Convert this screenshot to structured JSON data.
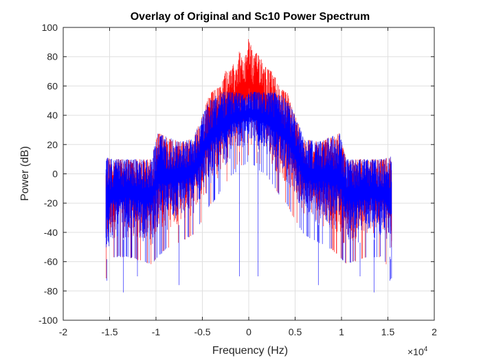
{
  "chart_data": {
    "type": "line",
    "title": "Overlay of Original and Sc10 Power Spectrum",
    "xlabel": "Frequency (Hz)",
    "ylabel": "Power (dB)",
    "x_exponent_base": "×10",
    "x_exponent_power": "4",
    "xlim": [
      -2,
      2
    ],
    "ylim": [
      -100,
      100
    ],
    "x_tick_labels": [
      "-2",
      "-1.5",
      "-1",
      "-0.5",
      "0",
      "0.5",
      "1",
      "1.5",
      "2"
    ],
    "y_tick_labels": [
      "-100",
      "-80",
      "-60",
      "-40",
      "-20",
      "0",
      "20",
      "40",
      "60",
      "80",
      "100"
    ],
    "grid": true,
    "x_units_scale": 10000,
    "series": [
      {
        "color": "#ff0000",
        "x_range": [
          -1.54,
          1.54
        ],
        "envelope_x": [
          -1.54,
          -1.45,
          -1.3,
          -1.05,
          -0.98,
          -0.9,
          -0.75,
          -0.6,
          -0.5,
          -0.42,
          -0.35,
          -0.3,
          -0.25,
          -0.2,
          -0.1,
          -0.05,
          0,
          0.05,
          0.1,
          0.2,
          0.25,
          0.3,
          0.35,
          0.42,
          0.5,
          0.6,
          0.75,
          0.9,
          0.98,
          1.05,
          1.3,
          1.45,
          1.54
        ],
        "envelope_top": [
          12,
          10,
          10,
          10,
          28,
          26,
          22,
          24,
          40,
          55,
          58,
          60,
          72,
          70,
          84,
          75,
          96,
          80,
          84,
          72,
          70,
          65,
          58,
          55,
          40,
          24,
          22,
          26,
          28,
          10,
          10,
          10,
          12
        ],
        "envelope_bottom": [
          -60,
          -45,
          -45,
          -50,
          -45,
          -40,
          -35,
          -30,
          -20,
          -10,
          -5,
          0,
          5,
          10,
          20,
          15,
          25,
          15,
          20,
          10,
          5,
          0,
          -5,
          -10,
          -20,
          -30,
          -35,
          -40,
          -45,
          -50,
          -45,
          -45,
          -60
        ],
        "sample_count": 1000
      },
      {
        "color": "#0000ff",
        "x_range": [
          -1.54,
          1.54
        ],
        "clip_top": 56,
        "envelope_x": [
          -1.54,
          -1.45,
          -1.3,
          -1.05,
          -0.98,
          -0.9,
          -0.75,
          -0.6,
          -0.5,
          -0.42,
          -0.35,
          -0.3,
          -0.2,
          0,
          0.2,
          0.3,
          0.35,
          0.42,
          0.5,
          0.6,
          0.75,
          0.9,
          0.98,
          1.05,
          1.3,
          1.45,
          1.54
        ],
        "envelope_top": [
          12,
          10,
          10,
          10,
          28,
          26,
          22,
          24,
          40,
          50,
          54,
          56,
          56,
          56,
          56,
          56,
          54,
          50,
          40,
          24,
          22,
          26,
          28,
          10,
          10,
          10,
          12
        ],
        "envelope_bottom": [
          -60,
          -45,
          -45,
          -50,
          -45,
          -40,
          -35,
          -30,
          -20,
          -10,
          -5,
          0,
          10,
          20,
          10,
          0,
          -5,
          -10,
          -20,
          -30,
          -35,
          -40,
          -45,
          -50,
          -45,
          -45,
          -60
        ],
        "deep_spikes": [
          [
            -1.53,
            -73
          ],
          [
            -1.53,
            -72
          ],
          [
            -1.2,
            -70
          ],
          [
            -0.75,
            -76
          ],
          [
            -0.1,
            -70
          ],
          [
            0.1,
            -70
          ],
          [
            0.75,
            -76
          ],
          [
            1.2,
            -70
          ],
          [
            1.52,
            -73
          ],
          [
            1.53,
            -72
          ],
          [
            -1.35,
            -81
          ],
          [
            1.35,
            -81
          ]
        ],
        "sample_count": 1000
      }
    ]
  }
}
